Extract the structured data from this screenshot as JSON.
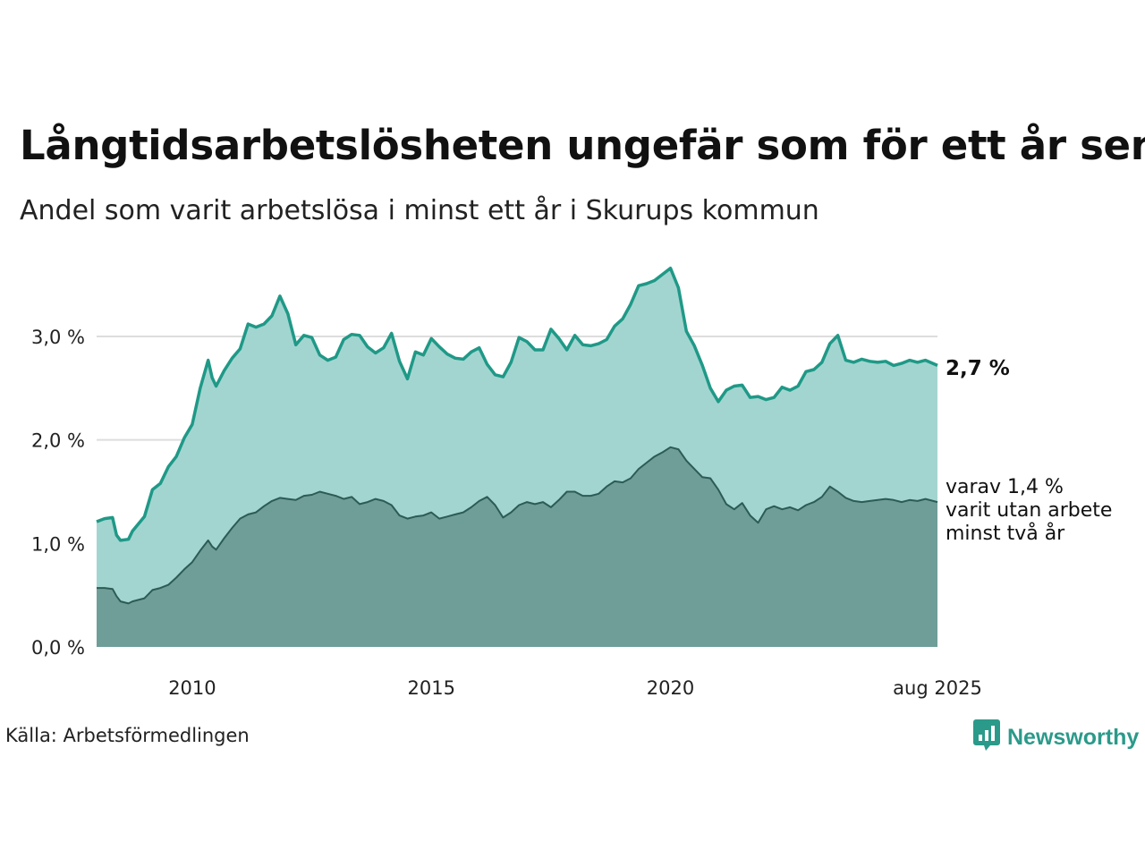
{
  "title": "Långtidsarbetslösheten ungefär som för ett år sen",
  "subtitle": "Andel som varit arbetslösa i minst ett år i Skurups kommun",
  "source": "Källa: Arbetsförmedlingen",
  "brand": {
    "name": "Newsworthy",
    "icon": "newsworthy-logo-icon"
  },
  "colors": {
    "total_line": "#1f9987",
    "total_fill": "#a3d5d0",
    "sub_line": "#2d5b55",
    "sub_fill": "#6f9e98",
    "grid": "#dddddd"
  },
  "annotations": {
    "total_end": "2,7 %",
    "sub_end_lines": [
      "varav 1,4 %",
      "varit utan arbete",
      "minst två år"
    ]
  },
  "chart_data": {
    "type": "area",
    "title": "Långtidsarbetslösheten ungefär som för ett år sen",
    "subtitle": "Andel som varit arbetslösa i minst ett år i Skurups kommun",
    "xlabel": "",
    "ylabel": "",
    "x_range": [
      "2008-01",
      "2025-08"
    ],
    "ylim": [
      0,
      3.7
    ],
    "yticks": [
      0,
      1.0,
      2.0,
      3.0
    ],
    "ytick_labels": [
      "0,0 %",
      "1,0 %",
      "2,0 %",
      "3,0 %"
    ],
    "xticks": [
      "2010-01",
      "2015-01",
      "2020-01",
      "2025-08"
    ],
    "xtick_labels": [
      "2010",
      "2015",
      "2020",
      "aug 2025"
    ],
    "grid": true,
    "series": [
      {
        "name": "",
        "points": [
          [
            "2008-01",
            1.21
          ],
          [
            "2008-03",
            1.24
          ],
          [
            "2008-05",
            1.25
          ],
          [
            "2008-06",
            1.08
          ],
          [
            "2008-07",
            1.03
          ],
          [
            "2008-09",
            1.04
          ],
          [
            "2008-10",
            1.12
          ],
          [
            "2009-01",
            1.26
          ],
          [
            "2009-03",
            1.52
          ],
          [
            "2009-05",
            1.58
          ],
          [
            "2009-07",
            1.74
          ],
          [
            "2009-09",
            1.84
          ],
          [
            "2009-11",
            2.02
          ],
          [
            "2010-01",
            2.15
          ],
          [
            "2010-03",
            2.5
          ],
          [
            "2010-05",
            2.77
          ],
          [
            "2010-06",
            2.6
          ],
          [
            "2010-07",
            2.52
          ],
          [
            "2010-09",
            2.67
          ],
          [
            "2010-11",
            2.79
          ],
          [
            "2011-01",
            2.88
          ],
          [
            "2011-03",
            3.12
          ],
          [
            "2011-05",
            3.09
          ],
          [
            "2011-07",
            3.12
          ],
          [
            "2011-09",
            3.2
          ],
          [
            "2011-11",
            3.39
          ],
          [
            "2012-01",
            3.22
          ],
          [
            "2012-03",
            2.92
          ],
          [
            "2012-05",
            3.01
          ],
          [
            "2012-07",
            2.99
          ],
          [
            "2012-09",
            2.82
          ],
          [
            "2012-11",
            2.77
          ],
          [
            "2013-01",
            2.8
          ],
          [
            "2013-03",
            2.97
          ],
          [
            "2013-05",
            3.02
          ],
          [
            "2013-07",
            3.01
          ],
          [
            "2013-09",
            2.9
          ],
          [
            "2013-11",
            2.84
          ],
          [
            "2014-01",
            2.89
          ],
          [
            "2014-03",
            3.03
          ],
          [
            "2014-05",
            2.76
          ],
          [
            "2014-07",
            2.59
          ],
          [
            "2014-09",
            2.85
          ],
          [
            "2014-11",
            2.82
          ],
          [
            "2015-01",
            2.98
          ],
          [
            "2015-03",
            2.9
          ],
          [
            "2015-05",
            2.83
          ],
          [
            "2015-07",
            2.79
          ],
          [
            "2015-09",
            2.78
          ],
          [
            "2015-11",
            2.85
          ],
          [
            "2016-01",
            2.89
          ],
          [
            "2016-03",
            2.73
          ],
          [
            "2016-05",
            2.63
          ],
          [
            "2016-07",
            2.61
          ],
          [
            "2016-09",
            2.75
          ],
          [
            "2016-11",
            2.99
          ],
          [
            "2017-01",
            2.95
          ],
          [
            "2017-03",
            2.87
          ],
          [
            "2017-05",
            2.87
          ],
          [
            "2017-07",
            3.07
          ],
          [
            "2017-09",
            2.98
          ],
          [
            "2017-11",
            2.87
          ],
          [
            "2018-01",
            3.01
          ],
          [
            "2018-03",
            2.92
          ],
          [
            "2018-05",
            2.91
          ],
          [
            "2018-07",
            2.93
          ],
          [
            "2018-09",
            2.97
          ],
          [
            "2018-11",
            3.1
          ],
          [
            "2019-01",
            3.17
          ],
          [
            "2019-03",
            3.31
          ],
          [
            "2019-05",
            3.49
          ],
          [
            "2019-07",
            3.51
          ],
          [
            "2019-09",
            3.54
          ],
          [
            "2019-11",
            3.6
          ],
          [
            "2020-01",
            3.66
          ],
          [
            "2020-03",
            3.47
          ],
          [
            "2020-05",
            3.05
          ],
          [
            "2020-07",
            2.91
          ],
          [
            "2020-09",
            2.72
          ],
          [
            "2020-11",
            2.5
          ],
          [
            "2021-01",
            2.37
          ],
          [
            "2021-03",
            2.48
          ],
          [
            "2021-05",
            2.52
          ],
          [
            "2021-07",
            2.53
          ],
          [
            "2021-09",
            2.41
          ],
          [
            "2021-11",
            2.42
          ],
          [
            "2022-01",
            2.39
          ],
          [
            "2022-03",
            2.41
          ],
          [
            "2022-05",
            2.51
          ],
          [
            "2022-07",
            2.48
          ],
          [
            "2022-09",
            2.52
          ],
          [
            "2022-11",
            2.66
          ],
          [
            "2023-01",
            2.68
          ],
          [
            "2023-03",
            2.75
          ],
          [
            "2023-05",
            2.93
          ],
          [
            "2023-07",
            3.01
          ],
          [
            "2023-09",
            2.77
          ],
          [
            "2023-11",
            2.75
          ],
          [
            "2024-01",
            2.78
          ],
          [
            "2024-03",
            2.76
          ],
          [
            "2024-05",
            2.75
          ],
          [
            "2024-07",
            2.76
          ],
          [
            "2024-09",
            2.72
          ],
          [
            "2024-11",
            2.74
          ],
          [
            "2025-01",
            2.77
          ],
          [
            "2025-03",
            2.75
          ],
          [
            "2025-05",
            2.77
          ],
          [
            "2025-08",
            2.72
          ]
        ]
      },
      {
        "name": "",
        "points": [
          [
            "2008-01",
            0.57
          ],
          [
            "2008-03",
            0.57
          ],
          [
            "2008-05",
            0.56
          ],
          [
            "2008-06",
            0.49
          ],
          [
            "2008-07",
            0.44
          ],
          [
            "2008-09",
            0.42
          ],
          [
            "2008-10",
            0.44
          ],
          [
            "2009-01",
            0.47
          ],
          [
            "2009-03",
            0.55
          ],
          [
            "2009-05",
            0.57
          ],
          [
            "2009-07",
            0.6
          ],
          [
            "2009-09",
            0.67
          ],
          [
            "2009-11",
            0.75
          ],
          [
            "2010-01",
            0.82
          ],
          [
            "2010-03",
            0.93
          ],
          [
            "2010-05",
            1.03
          ],
          [
            "2010-06",
            0.97
          ],
          [
            "2010-07",
            0.94
          ],
          [
            "2010-09",
            1.05
          ],
          [
            "2010-11",
            1.15
          ],
          [
            "2011-01",
            1.24
          ],
          [
            "2011-03",
            1.28
          ],
          [
            "2011-05",
            1.3
          ],
          [
            "2011-07",
            1.36
          ],
          [
            "2011-09",
            1.41
          ],
          [
            "2011-11",
            1.44
          ],
          [
            "2012-01",
            1.43
          ],
          [
            "2012-03",
            1.42
          ],
          [
            "2012-05",
            1.46
          ],
          [
            "2012-07",
            1.47
          ],
          [
            "2012-09",
            1.5
          ],
          [
            "2012-11",
            1.48
          ],
          [
            "2013-01",
            1.46
          ],
          [
            "2013-03",
            1.43
          ],
          [
            "2013-05",
            1.45
          ],
          [
            "2013-07",
            1.38
          ],
          [
            "2013-09",
            1.4
          ],
          [
            "2013-11",
            1.43
          ],
          [
            "2014-01",
            1.41
          ],
          [
            "2014-03",
            1.37
          ],
          [
            "2014-05",
            1.27
          ],
          [
            "2014-07",
            1.24
          ],
          [
            "2014-09",
            1.26
          ],
          [
            "2014-11",
            1.27
          ],
          [
            "2015-01",
            1.3
          ],
          [
            "2015-03",
            1.24
          ],
          [
            "2015-05",
            1.26
          ],
          [
            "2015-07",
            1.28
          ],
          [
            "2015-09",
            1.3
          ],
          [
            "2015-11",
            1.35
          ],
          [
            "2016-01",
            1.41
          ],
          [
            "2016-03",
            1.45
          ],
          [
            "2016-05",
            1.37
          ],
          [
            "2016-07",
            1.25
          ],
          [
            "2016-09",
            1.3
          ],
          [
            "2016-11",
            1.37
          ],
          [
            "2017-01",
            1.4
          ],
          [
            "2017-03",
            1.38
          ],
          [
            "2017-05",
            1.4
          ],
          [
            "2017-07",
            1.35
          ],
          [
            "2017-09",
            1.42
          ],
          [
            "2017-11",
            1.5
          ],
          [
            "2018-01",
            1.5
          ],
          [
            "2018-03",
            1.46
          ],
          [
            "2018-05",
            1.46
          ],
          [
            "2018-07",
            1.48
          ],
          [
            "2018-09",
            1.55
          ],
          [
            "2018-11",
            1.6
          ],
          [
            "2019-01",
            1.59
          ],
          [
            "2019-03",
            1.63
          ],
          [
            "2019-05",
            1.72
          ],
          [
            "2019-07",
            1.78
          ],
          [
            "2019-09",
            1.84
          ],
          [
            "2019-11",
            1.88
          ],
          [
            "2020-01",
            1.93
          ],
          [
            "2020-03",
            1.91
          ],
          [
            "2020-05",
            1.8
          ],
          [
            "2020-07",
            1.72
          ],
          [
            "2020-09",
            1.64
          ],
          [
            "2020-11",
            1.63
          ],
          [
            "2021-01",
            1.52
          ],
          [
            "2021-03",
            1.38
          ],
          [
            "2021-05",
            1.33
          ],
          [
            "2021-07",
            1.39
          ],
          [
            "2021-09",
            1.27
          ],
          [
            "2021-11",
            1.2
          ],
          [
            "2022-01",
            1.33
          ],
          [
            "2022-03",
            1.36
          ],
          [
            "2022-05",
            1.33
          ],
          [
            "2022-07",
            1.35
          ],
          [
            "2022-09",
            1.32
          ],
          [
            "2022-11",
            1.37
          ],
          [
            "2023-01",
            1.4
          ],
          [
            "2023-03",
            1.45
          ],
          [
            "2023-05",
            1.55
          ],
          [
            "2023-07",
            1.5
          ],
          [
            "2023-09",
            1.44
          ],
          [
            "2023-11",
            1.41
          ],
          [
            "2024-01",
            1.4
          ],
          [
            "2024-03",
            1.41
          ],
          [
            "2024-05",
            1.42
          ],
          [
            "2024-07",
            1.43
          ],
          [
            "2024-09",
            1.42
          ],
          [
            "2024-11",
            1.4
          ],
          [
            "2025-01",
            1.42
          ],
          [
            "2025-03",
            1.41
          ],
          [
            "2025-05",
            1.43
          ],
          [
            "2025-08",
            1.4
          ]
        ]
      }
    ]
  }
}
